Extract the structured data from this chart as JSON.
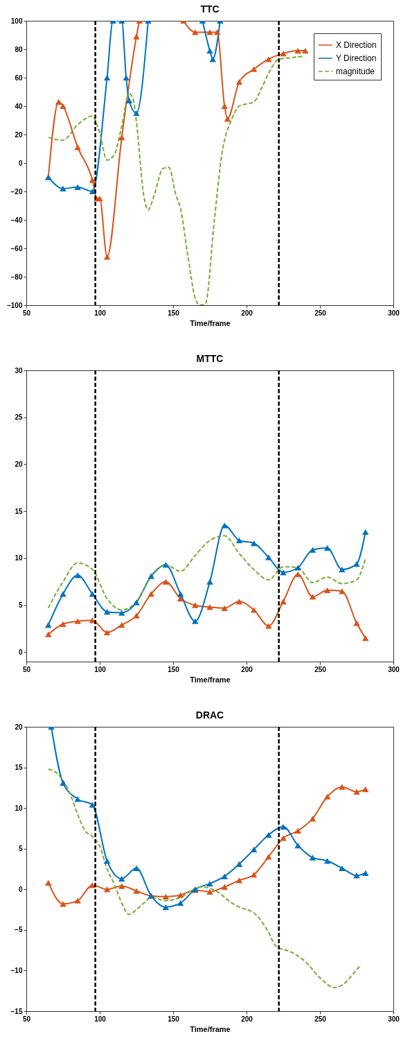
{
  "chart_data": [
    {
      "type": "line",
      "title": "TTC",
      "xlabel": "Time/frame",
      "xlim": [
        50,
        300
      ],
      "xticks": [
        50,
        100,
        150,
        200,
        250,
        300
      ],
      "ylim": [
        -100,
        100
      ],
      "yticks": [
        -100,
        -80,
        -60,
        -40,
        -20,
        0,
        20,
        40,
        60,
        80,
        100
      ],
      "grid": false,
      "legend": "top right",
      "marker": "triangle",
      "ref_lines": [
        {
          "axis": "x",
          "value": 97,
          "color": "#000000",
          "line_style": "dashed"
        },
        {
          "axis": "x",
          "value": 222,
          "color": "#000000",
          "line_style": "dashed"
        }
      ],
      "series": [
        {
          "name": "X Direction",
          "color": "#d95319",
          "line_style": "solid",
          "x": [
            65,
            72,
            75,
            85,
            95,
            98,
            100,
            105,
            115,
            125,
            127,
            140,
            157,
            165,
            175,
            180,
            185,
            187,
            195,
            205,
            215,
            225,
            235,
            240
          ],
          "values": [
            -10,
            43,
            40,
            11,
            -12,
            -25,
            -25,
            -66,
            18,
            89,
            100,
            null,
            100,
            92,
            92,
            92,
            40,
            31,
            57,
            66,
            73,
            77,
            79,
            79
          ]
        },
        {
          "name": "Y Direction",
          "color": "#0072bd",
          "line_style": "solid",
          "x": [
            65,
            75,
            85,
            95,
            105,
            109,
            115,
            118,
            120,
            125,
            133,
            150,
            170,
            175,
            177,
            182
          ],
          "values": [
            -10,
            -18,
            -17,
            -20,
            60,
            100,
            100,
            60,
            44,
            35,
            100,
            null,
            100,
            79,
            73,
            100
          ]
        },
        {
          "name": "magnitude",
          "color": "#77ac30",
          "line_style": "dashed",
          "marker": "none",
          "x": [
            65,
            75,
            85,
            95,
            100,
            105,
            110,
            115,
            120,
            123,
            125,
            130,
            133,
            137,
            143,
            147,
            152,
            155,
            160,
            165,
            168,
            172,
            178,
            183,
            190,
            195,
            205,
            210,
            215,
            222,
            230,
            238
          ],
          "values": [
            18,
            16,
            27,
            33,
            21,
            2,
            6,
            26,
            49,
            44,
            29,
            -23,
            -33,
            -23,
            -4,
            -3,
            -23,
            -32,
            -65,
            -95,
            -100,
            -99,
            -41,
            5,
            31,
            40,
            43,
            52,
            63,
            73,
            74,
            75
          ]
        }
      ]
    },
    {
      "type": "line",
      "title": "MTTC",
      "xlabel": "Time/frame",
      "xlim": [
        50,
        300
      ],
      "xticks": [
        50,
        100,
        150,
        200,
        250,
        300
      ],
      "ylim": [
        -1,
        30
      ],
      "yticks": [
        0,
        5,
        10,
        15,
        20,
        25,
        30
      ],
      "grid": false,
      "legend": "top right",
      "marker": "triangle",
      "ref_lines": [
        {
          "axis": "x",
          "value": 97,
          "color": "#000000",
          "line_style": "dashed"
        },
        {
          "axis": "x",
          "value": 222,
          "color": "#000000",
          "line_style": "dashed"
        }
      ],
      "x": [
        65,
        75,
        85,
        95,
        105,
        115,
        125,
        135,
        145,
        155,
        165,
        175,
        185,
        195,
        205,
        215,
        225,
        235,
        245,
        255,
        265,
        275,
        281
      ],
      "series": [
        {
          "name": "X Direction",
          "color": "#d95319",
          "line_style": "solid",
          "values": [
            1.9,
            3.0,
            3.3,
            3.4,
            2.1,
            2.9,
            3.9,
            6.2,
            7.5,
            5.7,
            5.0,
            4.8,
            4.7,
            5.4,
            4.5,
            2.8,
            5.4,
            8.3,
            5.9,
            6.6,
            6.5,
            3.1,
            1.5
          ]
        },
        {
          "name": "Y Direction",
          "color": "#0072bd",
          "line_style": "solid",
          "values": [
            2.9,
            6.2,
            8.2,
            6.2,
            4.3,
            4.2,
            5.3,
            8.1,
            9.3,
            6.2,
            3.3,
            7.5,
            13.5,
            11.9,
            11.6,
            10.1,
            8.5,
            9.0,
            10.9,
            11.1,
            8.8,
            9.4,
            12.8
          ]
        },
        {
          "name": "magnitude",
          "color": "#77ac30",
          "line_style": "dashed",
          "marker": "none",
          "values": [
            4.7,
            7.5,
            9.5,
            8.8,
            5.7,
            4.5,
            5.4,
            8.0,
            9.3,
            8.6,
            10.3,
            11.9,
            12.4,
            10.5,
            8.8,
            7.7,
            9.1,
            9.0,
            7.4,
            8.0,
            7.3,
            7.7,
            10.0
          ]
        }
      ]
    },
    {
      "type": "line",
      "title": "DRAC",
      "xlabel": "Time/frame",
      "xlim": [
        50,
        300
      ],
      "xticks": [
        50,
        100,
        150,
        200,
        250,
        300
      ],
      "ylim": [
        -15,
        20
      ],
      "yticks": [
        -15,
        -10,
        -5,
        0,
        5,
        10,
        15,
        20
      ],
      "grid": false,
      "legend": "top right",
      "marker": "triangle",
      "ref_lines": [
        {
          "axis": "x",
          "value": 97,
          "color": "#000000",
          "line_style": "dashed"
        },
        {
          "axis": "x",
          "value": 222,
          "color": "#000000",
          "line_style": "dashed"
        }
      ],
      "series": [
        {
          "name": "X Direction",
          "color": "#d95319",
          "line_style": "solid",
          "x": [
            65,
            75,
            85,
            95,
            105,
            115,
            125,
            135,
            145,
            155,
            165,
            175,
            185,
            195,
            205,
            215,
            225,
            235,
            245,
            255,
            265,
            275,
            281
          ],
          "values": [
            0.8,
            -1.8,
            -1.4,
            0.5,
            0.0,
            0.4,
            -0.2,
            -0.8,
            -0.9,
            -0.7,
            -0.1,
            -0.3,
            0.3,
            1.1,
            1.8,
            4.0,
            6.3,
            7.2,
            8.7,
            11.4,
            12.6,
            12.0,
            12.3
          ]
        },
        {
          "name": "Y Direction",
          "color": "#0072bd",
          "line_style": "solid",
          "x": [
            67,
            75,
            85,
            95,
            105,
            115,
            125,
            135,
            145,
            155,
            165,
            175,
            185,
            195,
            205,
            215,
            225,
            235,
            245,
            255,
            265,
            275,
            281
          ],
          "values": [
            20,
            13.1,
            11.1,
            10.4,
            3.5,
            1.3,
            2.6,
            -0.8,
            -2.2,
            -1.7,
            0.0,
            0.7,
            1.6,
            3.1,
            4.9,
            6.7,
            7.7,
            5.4,
            3.9,
            3.5,
            2.6,
            1.7,
            2.0
          ]
        },
        {
          "name": "magnitude",
          "color": "#77ac30",
          "line_style": "dashed",
          "marker": "none",
          "x": [
            65,
            70,
            75,
            80,
            85,
            90,
            95,
            100,
            105,
            110,
            115,
            120,
            125,
            130,
            135,
            145,
            155,
            165,
            170,
            180,
            190,
            195,
            205,
            215,
            220,
            230,
            240,
            250,
            260,
            265,
            275,
            278
          ],
          "values": [
            14.8,
            14.4,
            13.4,
            11.7,
            9.2,
            7.2,
            6.5,
            5.3,
            2.5,
            0.6,
            -1.7,
            -3.1,
            -2.5,
            -1.7,
            -1.0,
            -1.4,
            -1.0,
            0.1,
            0.3,
            -0.3,
            -1.7,
            -2.2,
            -2.9,
            -5.3,
            -7.0,
            -7.7,
            -8.9,
            -10.9,
            -12.1,
            -11.8,
            -9.9,
            -9.3
          ]
        }
      ]
    }
  ]
}
